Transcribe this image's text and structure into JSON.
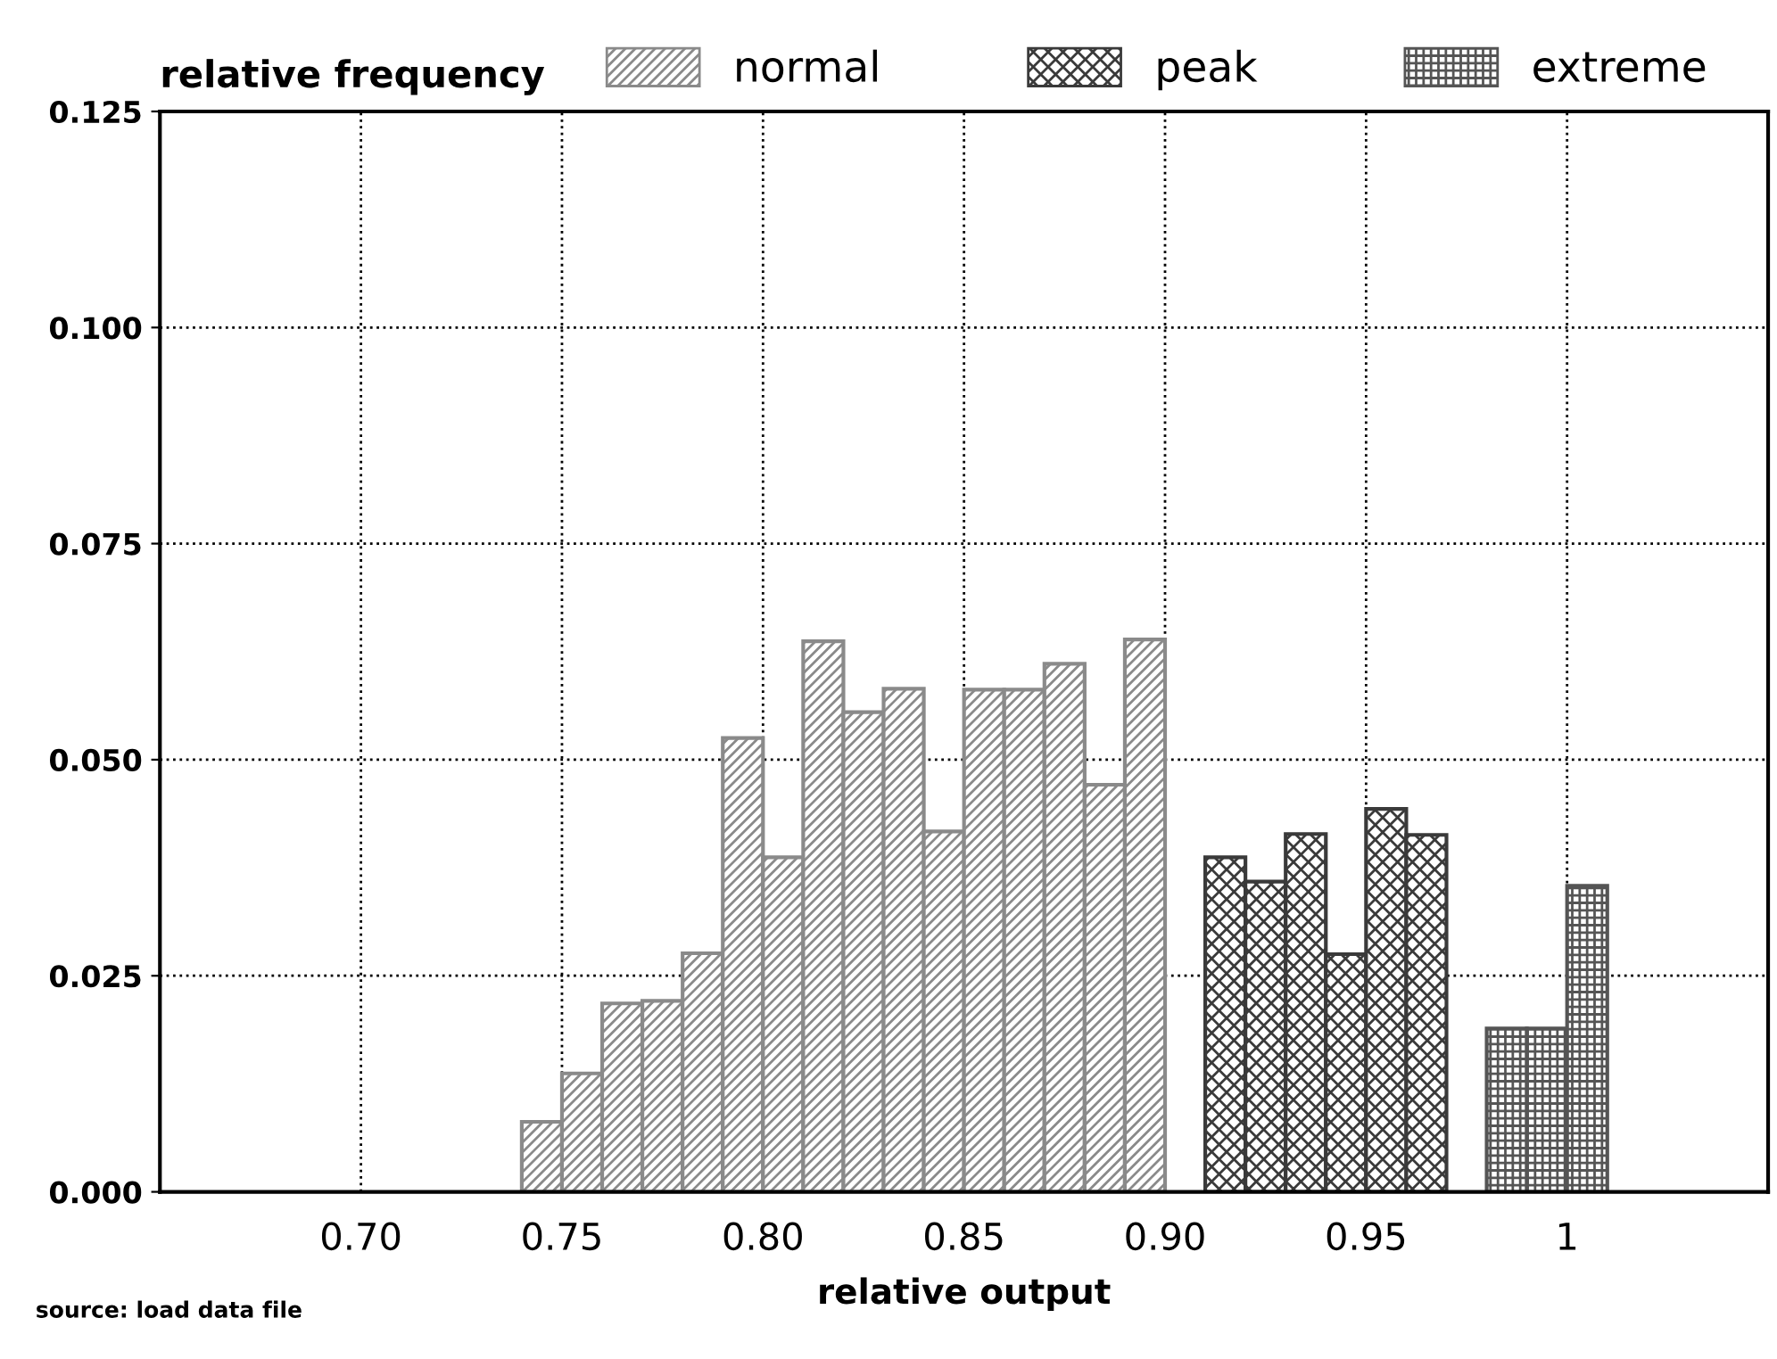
{
  "chart_data": {
    "type": "bar",
    "ylabel": "relative frequency",
    "xlabel": "relative output",
    "annotations": [
      "source: load data file"
    ],
    "series": [
      {
        "name": "normal",
        "color": "#8a8a8a",
        "x": [
          0.745,
          0.755,
          0.765,
          0.775,
          0.785,
          0.795,
          0.805,
          0.815,
          0.825,
          0.835,
          0.845,
          0.855,
          0.865,
          0.875,
          0.885,
          0.895
        ],
        "values": [
          0.0081,
          0.0137,
          0.0218,
          0.0221,
          0.0276,
          0.0525,
          0.0387,
          0.0637,
          0.0555,
          0.0582,
          0.0417,
          0.0581,
          0.0581,
          0.0611,
          0.0471,
          0.0639
        ]
      },
      {
        "name": "peak",
        "color": "#3a3a3a",
        "x": [
          0.915,
          0.925,
          0.935,
          0.945,
          0.955,
          0.965
        ],
        "values": [
          0.0387,
          0.0359,
          0.0414,
          0.0275,
          0.0443,
          0.0413
        ]
      },
      {
        "name": "extreme",
        "color": "#555555",
        "x": [
          0.985,
          0.995,
          1.005
        ],
        "values": [
          0.0189,
          0.0189,
          0.0354
        ]
      }
    ],
    "xlim": [
      0.65,
      1.05
    ],
    "ylim": [
      0,
      0.125
    ],
    "xticks": [
      {
        "value": 0.7,
        "label": "0.70"
      },
      0.75,
      {
        "value": 0.8,
        "label": "0.80"
      },
      0.85,
      {
        "value": 0.9,
        "label": "0.90"
      },
      0.95,
      1
    ],
    "yticks": [
      {
        "value": 0,
        "label": "0.000"
      },
      0.025,
      {
        "value": 0.05,
        "label": "0.050"
      },
      0.075,
      {
        "value": 0.1,
        "label": "0.100"
      },
      0.125
    ],
    "grid": true,
    "legend": "top"
  }
}
